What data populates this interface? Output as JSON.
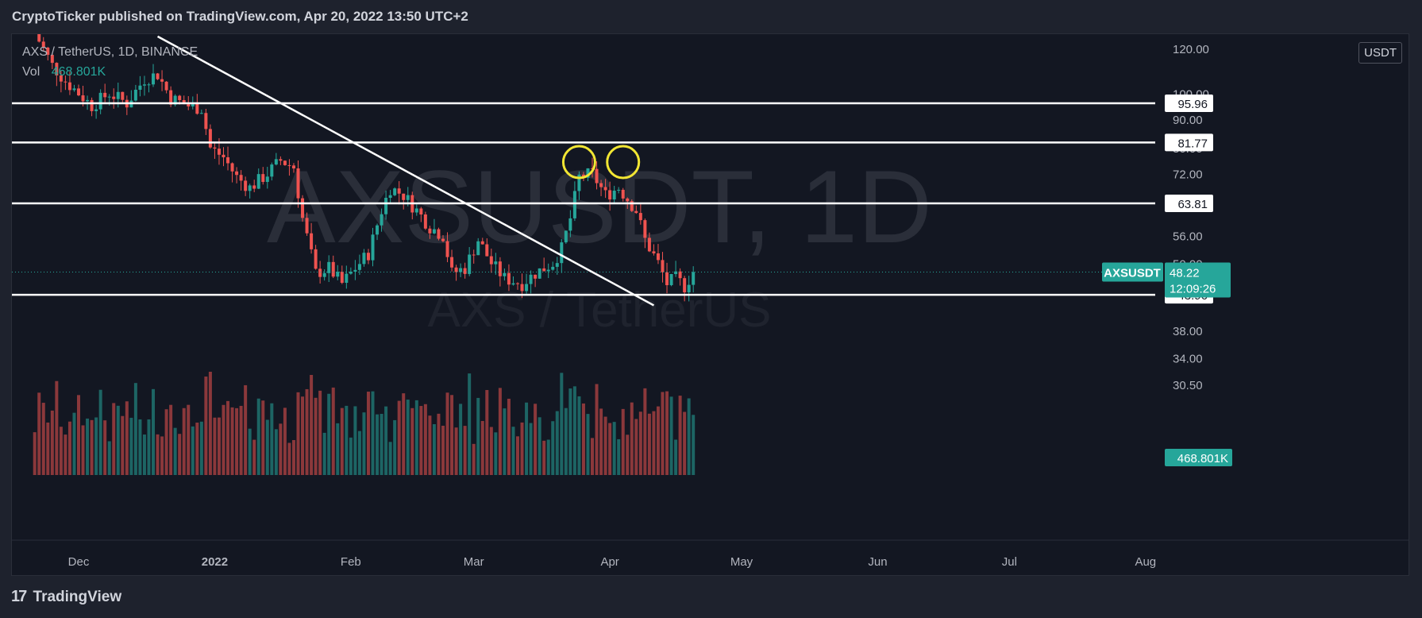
{
  "header": {
    "publisher_line": "CryptoTicker published on TradingView.com, Apr 20, 2022 13:50 UTC+2"
  },
  "legend": {
    "symbol_line": "AXS / TetherUS, 1D, BINANCE",
    "vol_label": "Vol",
    "vol_value": "468.801K"
  },
  "unit_badge": "USDT",
  "footer": {
    "brand": "TradingView",
    "brand_mark": "17"
  },
  "colors": {
    "up": "#26a69a",
    "down": "#ef5350",
    "background": "#131722",
    "line": "#ffffff",
    "circle": "#f2e633"
  },
  "chart_data": {
    "type": "candlestick",
    "symbol": "AXS / TetherUS",
    "interval": "1D",
    "exchange": "BINANCE",
    "watermark": "AXSUSDT, 1D",
    "watermark_sub": "AXS / TetherUS",
    "price_scale": "log",
    "y_tick_labels": [
      "120.00",
      "100.00",
      "90.00",
      "80.00",
      "72.00",
      "56.00",
      "50.00",
      "38.00",
      "34.00",
      "30.50"
    ],
    "y_ticks": [
      120,
      100,
      90,
      80,
      72,
      56,
      50,
      38,
      34,
      30.5
    ],
    "x_tick_labels": [
      "Dec",
      "2022",
      "Feb",
      "Mar",
      "Apr",
      "May",
      "Jun",
      "Jul",
      "Aug"
    ],
    "x_ticks": [
      "2021-12-01",
      "2022-01-01",
      "2022-02-01",
      "2022-03-01",
      "2022-04-01",
      "2022-05-01",
      "2022-06-01",
      "2022-07-01",
      "2022-08-01"
    ],
    "horizontal_levels": [
      {
        "label": "95.96",
        "value": 95.96
      },
      {
        "label": "81.77",
        "value": 81.77
      },
      {
        "label": "63.81",
        "value": 63.81
      },
      {
        "label": "43.96",
        "value": 43.96
      }
    ],
    "trendline": {
      "from": {
        "date": "2021-12-19",
        "price": 126
      },
      "to": {
        "date": "2022-04-11",
        "price": 42.1
      }
    },
    "circles": [
      {
        "date": "2022-03-25",
        "price": 75.5
      },
      {
        "date": "2022-04-04",
        "price": 75.5
      }
    ],
    "last_price": {
      "symbol": "AXSUSDT",
      "value": "48.22",
      "countdown": "12:09:26",
      "price": 48.22
    },
    "volume_label": "468.801K",
    "anchors": [
      [
        "2021-11-21",
        128
      ],
      [
        "2021-11-25",
        112
      ],
      [
        "2021-11-28",
        105
      ],
      [
        "2021-12-01",
        100
      ],
      [
        "2021-12-04",
        95
      ],
      [
        "2021-12-08",
        100
      ],
      [
        "2021-12-12",
        96
      ],
      [
        "2021-12-16",
        106
      ],
      [
        "2021-12-19",
        108
      ],
      [
        "2021-12-22",
        98
      ],
      [
        "2021-12-26",
        95
      ],
      [
        "2021-12-29",
        94
      ],
      [
        "2021-12-31",
        80
      ],
      [
        "2022-01-03",
        77
      ],
      [
        "2022-01-06",
        71
      ],
      [
        "2022-01-09",
        68
      ],
      [
        "2022-01-13",
        72
      ],
      [
        "2022-01-16",
        76
      ],
      [
        "2022-01-19",
        74
      ],
      [
        "2022-01-21",
        60
      ],
      [
        "2022-01-24",
        48
      ],
      [
        "2022-01-27",
        49
      ],
      [
        "2022-01-30",
        46
      ],
      [
        "2022-02-02",
        49
      ],
      [
        "2022-02-05",
        52
      ],
      [
        "2022-02-08",
        62
      ],
      [
        "2022-02-10",
        68
      ],
      [
        "2022-02-13",
        66
      ],
      [
        "2022-02-16",
        62
      ],
      [
        "2022-02-19",
        58
      ],
      [
        "2022-02-22",
        56
      ],
      [
        "2022-02-24",
        48
      ],
      [
        "2022-02-27",
        49
      ],
      [
        "2022-03-02",
        55
      ],
      [
        "2022-03-05",
        50
      ],
      [
        "2022-03-08",
        47
      ],
      [
        "2022-03-12",
        46
      ],
      [
        "2022-03-15",
        48
      ],
      [
        "2022-03-19",
        50
      ],
      [
        "2022-03-21",
        53
      ],
      [
        "2022-03-23",
        60
      ],
      [
        "2022-03-25",
        71
      ],
      [
        "2022-03-28",
        72
      ],
      [
        "2022-03-31",
        66
      ],
      [
        "2022-04-03",
        68
      ],
      [
        "2022-04-05",
        65
      ],
      [
        "2022-04-07",
        62
      ],
      [
        "2022-04-09",
        55
      ],
      [
        "2022-04-12",
        50
      ],
      [
        "2022-04-14",
        46
      ],
      [
        "2022-04-16",
        47
      ],
      [
        "2022-04-18",
        45.5
      ],
      [
        "2022-04-20",
        48.22
      ]
    ]
  }
}
